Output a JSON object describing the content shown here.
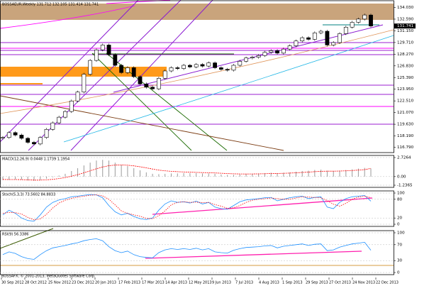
{
  "chart_data": [
    {
      "type": "candlestick",
      "title": "BOSSAEUR,Weekly 131.712 132.105 131.414 131.741",
      "values": [
        118.0,
        118.6,
        118.3,
        117.9,
        117.4,
        117.2,
        118.0,
        119.0,
        119.8,
        120.5,
        121.2,
        122.5,
        123.6,
        125.8,
        127.5,
        128.8,
        129.4,
        128.2,
        126.9,
        126.0,
        126.6,
        125.5,
        124.6,
        124.2,
        124.0,
        125.3,
        126.2,
        126.6,
        126.5,
        126.9,
        126.7,
        127.0,
        126.8,
        127.2,
        126.6,
        126.4,
        126.3,
        126.9,
        127.4,
        127.8,
        127.9,
        128.1,
        128.5,
        128.7,
        128.4,
        128.9,
        129.3,
        129.9,
        130.3,
        130.1,
        130.9,
        131.1,
        129.4,
        129.7,
        130.8,
        131.6,
        132.2,
        132.6,
        133.1,
        131.741
      ],
      "up_color": "#ffffff",
      "down_color": "#000000",
      "ylim": [
        116.4,
        134.6
      ],
      "yticks": [
        {
          "value": 134.03,
          "label": "134.030"
        },
        {
          "value": 132.59,
          "label": "132.590"
        },
        {
          "value": 131.15,
          "label": "131.150"
        },
        {
          "value": 129.71,
          "label": "129.710"
        },
        {
          "value": 128.27,
          "label": "128.270"
        },
        {
          "value": 126.83,
          "label": "126.830"
        },
        {
          "value": 125.39,
          "label": "125.390"
        },
        {
          "value": 123.95,
          "label": "123.950"
        },
        {
          "value": 122.51,
          "label": "122.510"
        },
        {
          "value": 121.07,
          "label": "121.070"
        },
        {
          "value": 119.63,
          "label": "119.630"
        },
        {
          "value": 118.19,
          "label": "118.190"
        },
        {
          "value": 116.79,
          "label": "116.790"
        }
      ],
      "xtick_labels": [
        "30 Sep 2012",
        "28 Oct 2012",
        "25 Nov 2012",
        "23 Dec 2012",
        "20 Jan 2013",
        "17 Feb 2013",
        "17 Mar 2013",
        "14 Apr 2013",
        "12 May 2013",
        "9 Jun 2013",
        "7 Jul 2013",
        "4 Aug 2013",
        "1 Sep 2013",
        "29 Sep 2013",
        "27 Oct 2013",
        "24 Nov 2013",
        "22 Dec 2013"
      ]
    },
    {
      "type": "histogram",
      "title": "MACD(12,26,9) 0.0448 1.1739 1.1954",
      "color": "#9a9a9a",
      "signal_color": "#ff0000",
      "values": [
        -0.5,
        -0.45,
        -0.4,
        -0.45,
        -0.55,
        -0.6,
        -0.5,
        -0.3,
        -0.1,
        0.15,
        0.4,
        0.8,
        1.2,
        1.6,
        2.0,
        2.3,
        2.4,
        2.3,
        2.0,
        1.7,
        1.5,
        1.2,
        0.9,
        0.6,
        0.4,
        0.35,
        0.4,
        0.45,
        0.45,
        0.5,
        0.5,
        0.5,
        0.45,
        0.45,
        0.4,
        0.3,
        0.25,
        0.25,
        0.3,
        0.35,
        0.4,
        0.45,
        0.5,
        0.55,
        0.5,
        0.55,
        0.6,
        0.7,
        0.8,
        0.85,
        0.95,
        1.0,
        0.85,
        0.8,
        0.85,
        0.95,
        1.05,
        1.15,
        1.25,
        1.17
      ],
      "signal_values": [
        -0.4,
        -0.42,
        -0.42,
        -0.43,
        -0.46,
        -0.5,
        -0.5,
        -0.46,
        -0.39,
        -0.28,
        -0.14,
        0.05,
        0.28,
        0.54,
        0.83,
        1.12,
        1.38,
        1.56,
        1.65,
        1.66,
        1.63,
        1.54,
        1.41,
        1.25,
        1.08,
        0.93,
        0.83,
        0.76,
        0.7,
        0.66,
        0.63,
        0.6,
        0.57,
        0.55,
        0.52,
        0.48,
        0.43,
        0.4,
        0.38,
        0.37,
        0.38,
        0.39,
        0.41,
        0.44,
        0.45,
        0.47,
        0.5,
        0.54,
        0.59,
        0.64,
        0.7,
        0.76,
        0.78,
        0.78,
        0.8,
        0.83,
        0.87,
        0.93,
        1.0,
        1.17
      ],
      "ylim": [
        -1.2365,
        2.7264
      ],
      "yticks": [
        2.7264,
        {
          "value": 0,
          "label": "0.00"
        },
        -1.2365
      ]
    },
    {
      "type": "line",
      "title": "Stoch(5,3,3) 73.5602 84.8833",
      "color": "#1e90ff",
      "signal_color": "#ff0000",
      "values": [
        30,
        45,
        35,
        20,
        12,
        10,
        30,
        55,
        70,
        78,
        82,
        88,
        90,
        93,
        95,
        94,
        85,
        60,
        40,
        30,
        35,
        25,
        18,
        15,
        20,
        45,
        65,
        75,
        70,
        72,
        68,
        74,
        65,
        70,
        55,
        50,
        48,
        60,
        72,
        78,
        80,
        82,
        85,
        86,
        75,
        80,
        85,
        88,
        90,
        82,
        86,
        88,
        55,
        50,
        70,
        82,
        88,
        90,
        92,
        74
      ],
      "signal_values": [
        35,
        38,
        37,
        33,
        22,
        14,
        17,
        32,
        52,
        68,
        77,
        83,
        87,
        90,
        93,
        94,
        91,
        80,
        62,
        43,
        35,
        30,
        26,
        19,
        18,
        27,
        43,
        62,
        70,
        72,
        70,
        71,
        69,
        70,
        63,
        58,
        51,
        53,
        60,
        70,
        77,
        80,
        82,
        84,
        82,
        80,
        80,
        84,
        88,
        87,
        86,
        85,
        76,
        64,
        58,
        67,
        80,
        87,
        90,
        85
      ],
      "ylim": [
        0,
        100
      ],
      "yticks": [
        100,
        80,
        20,
        0
      ]
    },
    {
      "type": "line",
      "title": "RSI(9) 56.3386",
      "color": "#1e90ff",
      "values": [
        45,
        52,
        48,
        40,
        35,
        33,
        45,
        55,
        62,
        65,
        68,
        72,
        75,
        80,
        83,
        85,
        80,
        65,
        55,
        50,
        54,
        45,
        40,
        38,
        37,
        50,
        57,
        60,
        58,
        60,
        58,
        61,
        57,
        60,
        52,
        50,
        49,
        56,
        60,
        63,
        64,
        65,
        67,
        68,
        62,
        66,
        68,
        70,
        72,
        68,
        71,
        72,
        55,
        57,
        64,
        68,
        72,
        74,
        76,
        56
      ],
      "ylim": [
        0,
        100
      ],
      "yticks": [
        100,
        70,
        30,
        0
      ]
    }
  ],
  "footer": "BOSSAFX, © 2001-2013, MetaQuotes Software Corp."
}
